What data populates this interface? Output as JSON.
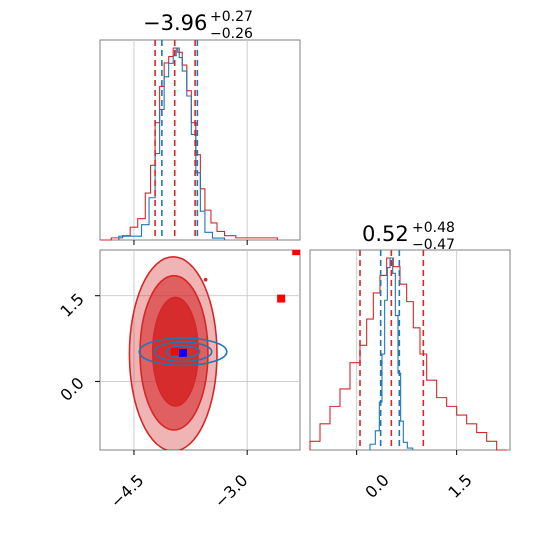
{
  "colors": {
    "red": "#d62728",
    "blue": "#1f77b4",
    "red_marker": "#ff0000",
    "blue_marker": "#0000ff",
    "grid": "#c8c8c8",
    "frame": "#808080"
  },
  "titles": {
    "x_param": {
      "median": "−3.96",
      "plus": "+0.27",
      "minus": "−0.26"
    },
    "y_param": {
      "median": "0.52",
      "plus": "+0.48",
      "minus": "−0.47"
    }
  },
  "tick_labels": {
    "x_param": [
      "−4.5",
      "−3.0"
    ],
    "y_param": [
      "0.0",
      "1.5"
    ]
  },
  "chart_data": [
    {
      "type": "area",
      "panel": "marginal-x-param",
      "xlim": [
        -4.95,
        -2.3
      ],
      "xticks": [
        -4.5,
        -3.0
      ],
      "grid": true,
      "series": [
        {
          "color": "#d62728",
          "hist_edges": [
            -4.95,
            -4.8,
            -4.65,
            -4.55,
            -4.45,
            -4.35,
            -4.28,
            -4.22,
            -4.16,
            -4.1,
            -4.04,
            -3.98,
            -3.92,
            -3.86,
            -3.8,
            -3.74,
            -3.68,
            -3.62,
            -3.56,
            -3.48,
            -3.4,
            -3.3,
            -3.15,
            -2.95,
            -2.6
          ],
          "hist_counts": [
            0,
            1,
            2,
            6,
            10,
            22,
            35,
            55,
            72,
            83,
            86,
            90,
            88,
            82,
            70,
            55,
            40,
            24,
            14,
            8,
            4,
            2,
            1,
            1
          ],
          "quantile_lines": [
            -4.22,
            -3.96,
            -3.69
          ]
        },
        {
          "color": "#1f77b4",
          "hist_edges": [
            -4.7,
            -4.4,
            -4.3,
            -4.22,
            -4.16,
            -4.1,
            -4.04,
            -3.98,
            -3.94,
            -3.9,
            -3.86,
            -3.8,
            -3.74,
            -3.68,
            -3.62,
            -3.56,
            -3.46,
            -3.3
          ],
          "hist_counts": [
            2,
            8,
            22,
            45,
            68,
            85,
            92,
            96,
            100,
            95,
            88,
            75,
            55,
            35,
            15,
            4,
            1
          ],
          "quantile_lines": [
            -4.13,
            -3.66
          ]
        }
      ]
    },
    {
      "type": "area",
      "panel": "marginal-y-param",
      "xlim": [
        -0.7,
        2.3
      ],
      "xticks": [
        0.0,
        1.5
      ],
      "grid": true,
      "series": [
        {
          "color": "#d62728",
          "hist_edges": [
            -0.7,
            -0.55,
            -0.4,
            -0.25,
            -0.1,
            0.05,
            0.15,
            0.25,
            0.35,
            0.45,
            0.55,
            0.65,
            0.75,
            0.85,
            0.95,
            1.05,
            1.2,
            1.35,
            1.5,
            1.65,
            1.8,
            1.95,
            2.1,
            2.25
          ],
          "hist_counts": [
            1,
            3,
            5,
            7,
            10,
            12,
            15,
            18,
            20,
            22,
            21,
            19,
            17,
            14,
            11,
            8,
            6,
            5,
            4,
            3,
            2,
            1,
            0
          ],
          "quantile_lines": [
            0.05,
            0.52,
            1.0
          ]
        },
        {
          "color": "#1f77b4",
          "hist_edges": [
            0.2,
            0.28,
            0.34,
            0.38,
            0.42,
            0.46,
            0.5,
            0.54,
            0.58,
            0.62,
            0.66,
            0.7,
            0.76,
            0.84
          ],
          "hist_counts": [
            3,
            10,
            25,
            50,
            78,
            95,
            100,
            92,
            70,
            40,
            15,
            4,
            1
          ],
          "quantile_lines": [
            0.36,
            0.64
          ]
        }
      ]
    },
    {
      "type": "scatter",
      "panel": "joint",
      "xlim": [
        -4.95,
        -2.3
      ],
      "ylim": [
        -1.2,
        2.3
      ],
      "xticks": [
        -4.5,
        -3.0
      ],
      "yticks": [
        0.0,
        1.5
      ],
      "grid": true,
      "series": [
        {
          "color": "#d62728",
          "contours": [
            {
              "cx": -3.95,
              "cy": 0.52,
              "rx": 0.3,
              "ry": 0.95,
              "fill_opacity": 0.9
            },
            {
              "cx": -3.97,
              "cy": 0.5,
              "rx": 0.45,
              "ry": 1.35,
              "fill_opacity": 0.6
            },
            {
              "cx": -3.98,
              "cy": 0.48,
              "rx": 0.58,
              "ry": 1.7,
              "fill_opacity": 0.35
            }
          ],
          "points": [
            {
              "x": -3.55,
              "y": 1.78
            },
            {
              "x": -2.55,
              "y": 1.45
            },
            {
              "x": -2.35,
              "y": 2.28
            },
            {
              "x": -3.96,
              "y": 0.52
            }
          ]
        },
        {
          "color": "#1f77b4",
          "contours": [
            {
              "cx": -3.85,
              "cy": 0.52,
              "rx": 0.22,
              "ry": 0.1
            },
            {
              "cx": -3.85,
              "cy": 0.52,
              "rx": 0.38,
              "ry": 0.17
            },
            {
              "cx": -3.85,
              "cy": 0.52,
              "rx": 0.58,
              "ry": 0.24
            }
          ],
          "points": [
            {
              "x": -3.85,
              "y": 0.5
            }
          ]
        }
      ]
    }
  ]
}
